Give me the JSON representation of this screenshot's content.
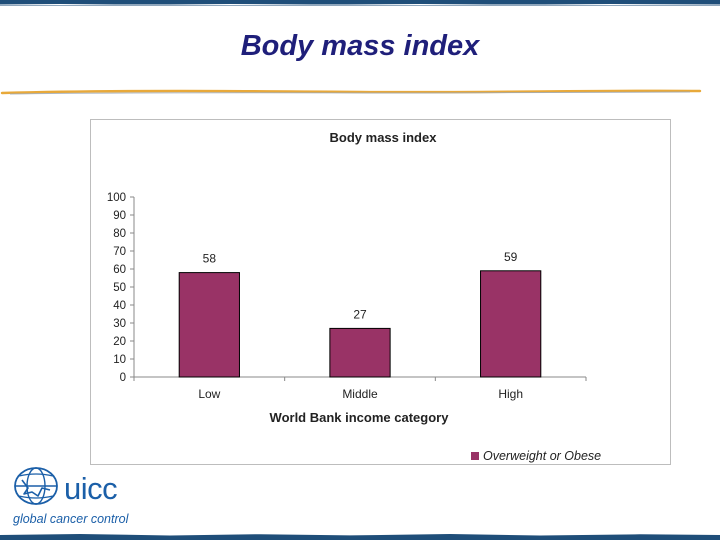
{
  "slide": {
    "title": "Body mass index"
  },
  "logo": {
    "word": "uicc",
    "tagline": "global cancer control"
  },
  "colors": {
    "bar": "#993366",
    "accent_rule": "#e8a93a",
    "edge": "#1f4e79",
    "title": "#1f1f7a"
  },
  "chart_data": {
    "type": "bar",
    "title": "Body mass index",
    "xlabel": "World Bank income category",
    "ylabel": "",
    "categories": [
      "Low",
      "Middle",
      "High"
    ],
    "series": [
      {
        "name": "Overweight or Obese",
        "values": [
          58,
          27,
          59
        ]
      }
    ],
    "ylim": [
      0,
      100
    ],
    "yticks": [
      0,
      10,
      20,
      30,
      40,
      50,
      60,
      70,
      80,
      90,
      100
    ],
    "data_labels": [
      "58",
      "27",
      "59"
    ],
    "grid": false,
    "legend_position": "bottom-right"
  }
}
